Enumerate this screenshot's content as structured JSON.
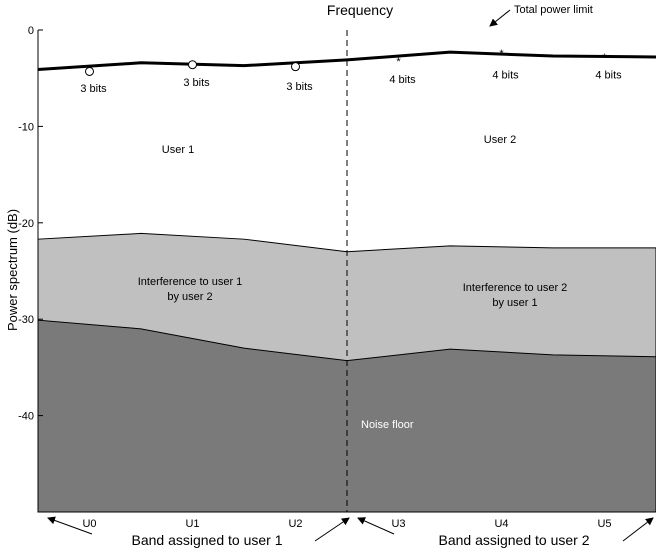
{
  "chart_data": {
    "type": "area",
    "title": "Frequency",
    "ylabel": "Power spectrum (dB)",
    "ylim": [
      -50,
      0
    ],
    "yticks": [
      0,
      -10,
      -20,
      -30,
      -40
    ],
    "categories": [
      "U0",
      "U1",
      "U2",
      "U3",
      "U4",
      "U5"
    ],
    "region_boundaries": [
      0,
      1,
      2,
      3,
      4,
      5,
      6
    ],
    "split_at": 3,
    "total_power": [
      -4.1,
      -3.4,
      -3.7,
      -3.1,
      -2.3,
      -2.7,
      -2.8
    ],
    "interference_top": [
      -21.7,
      -21.1,
      -21.7,
      -23.0,
      -22.4,
      -22.6,
      -22.6
    ],
    "noise_top": [
      -30.1,
      -31.0,
      -33.0,
      -34.3,
      -33.1,
      -33.7,
      -33.9
    ],
    "markers": {
      "user1_circles": [
        {
          "x": 0.5,
          "y": -4.3
        },
        {
          "x": 1.5,
          "y": -3.6
        },
        {
          "x": 2.5,
          "y": -3.8
        }
      ],
      "user2_stars": [
        {
          "x": 3.5,
          "y": -3.1
        },
        {
          "x": 4.5,
          "y": -2.3
        },
        {
          "x": 5.5,
          "y": -2.7
        }
      ]
    },
    "bit_labels": [
      {
        "text": "3 bits",
        "x": 0.5,
        "y": -6.0
      },
      {
        "text": "3 bits",
        "x": 1.5,
        "y": -5.4
      },
      {
        "text": "3 bits",
        "x": 2.5,
        "y": -5.8
      },
      {
        "text": "4 bits",
        "x": 3.5,
        "y": -5.1
      },
      {
        "text": "4 bits",
        "x": 4.5,
        "y": -4.6
      },
      {
        "text": "4 bits",
        "x": 5.5,
        "y": -4.6
      }
    ],
    "annotations": {
      "total_power_limit": "Total power limit",
      "user1": "User 1",
      "user2": "User 2",
      "interference1_line1": "Interference to user 1",
      "interference1_line2": "by user 2",
      "interference2_line1": "Interference to user 2",
      "interference2_line2": "by user 1",
      "noise_floor": "Noise floor",
      "band1": "Band assigned to user 1",
      "band2": "Band assigned to user 2"
    },
    "colors": {
      "interference": "#c0c0c0",
      "noise": "#7a7a7a",
      "power_line": "#000000",
      "noise_label": "#ffffff"
    }
  }
}
